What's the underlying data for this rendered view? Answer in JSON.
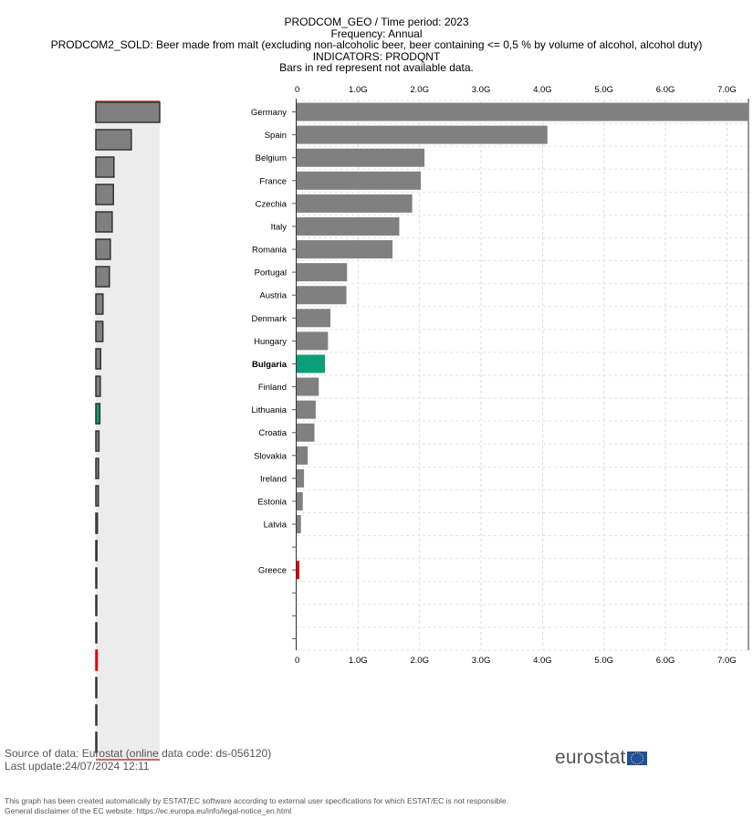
{
  "header": {
    "line1": "PRODCOM_GEO / Time period: 2023",
    "line2": "Frequency: Annual",
    "line3": "PRODCOM2_SOLD: Beer made from malt (excluding non-alcoholic beer, beer containing <= 0,5 % by volume of alcohol, alcohol duty)",
    "line4": "INDICATORS: PRODQNT",
    "line5": "Bars in red represent not available data."
  },
  "chart_data": {
    "type": "bar",
    "orientation": "horizontal",
    "categories": [
      "Germany",
      "Spain",
      "Belgium",
      "France",
      "Czechia",
      "Italy",
      "Romania",
      "Portugal",
      "Austria",
      "Denmark",
      "Hungary",
      "Bulgaria",
      "Finland",
      "Lithuania",
      "Croatia",
      "Slovakia",
      "Ireland",
      "Estonia",
      "Latvia",
      "",
      "Greece",
      "",
      "",
      ""
    ],
    "values": [
      7.35,
      4.08,
      2.08,
      2.02,
      1.88,
      1.67,
      1.56,
      0.82,
      0.81,
      0.55,
      0.51,
      0.46,
      0.36,
      0.31,
      0.29,
      0.18,
      0.12,
      0.1,
      0.07,
      0,
      null,
      0,
      0,
      0
    ],
    "unit": "G",
    "highlight": "Bulgaria",
    "not_available": [
      "Greece"
    ],
    "xlim": [
      0,
      7.35
    ],
    "xticks": [
      "0",
      "1.0G",
      "2.0G",
      "3.0G",
      "4.0G",
      "5.0G",
      "6.0G",
      "7.0G"
    ],
    "xtick_values": [
      0,
      1,
      2,
      3,
      4,
      5,
      6,
      7
    ],
    "grid": true,
    "colors": {
      "default": "#808080",
      "highlight": "#0a9e79",
      "not_available": "#e0000b"
    }
  },
  "footer": {
    "source_prefix": "Source of data: ",
    "source_link": "Eurostat",
    "source_suffix": " (online data code: ds-056120)",
    "last_update": "Last update:24/07/2024 12:11",
    "disclaimer1": "This graph has been created automatically by ESTAT/EC software according to external user specifications for which ESTAT/EC is not responsible.",
    "disclaimer2": "General disclaimer of the EC website: https://ec.europa.eu/info/legal-notice_en.html",
    "logo_text": "eurostat"
  }
}
